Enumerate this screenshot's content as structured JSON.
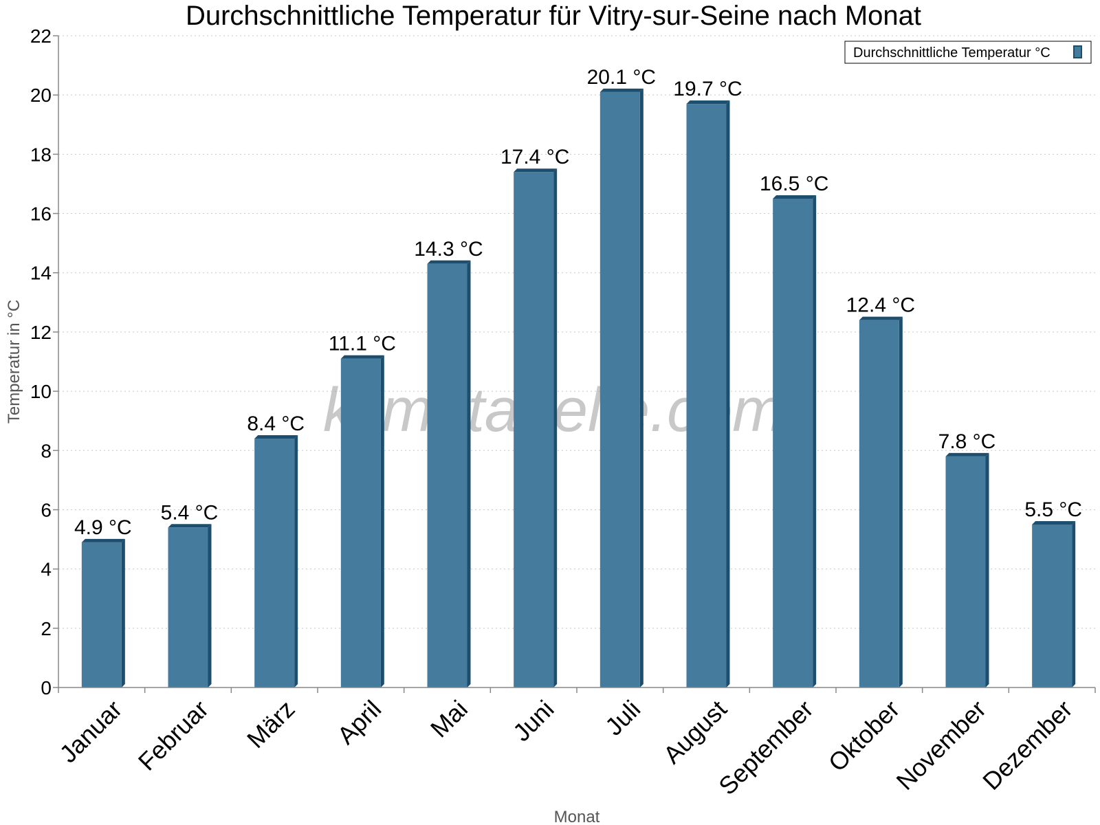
{
  "chart_data": {
    "type": "bar",
    "title": "Durchschnittliche Temperatur für Vitry-sur-Seine nach Monat",
    "xlabel": "Monat",
    "ylabel": "Temperatur in °C",
    "categories": [
      "Januar",
      "Februar",
      "März",
      "April",
      "Mai",
      "Juni",
      "Juli",
      "August",
      "September",
      "Oktober",
      "November",
      "Dezember"
    ],
    "series": [
      {
        "name": "Durchschnittliche Temperatur °C",
        "values": [
          4.9,
          5.4,
          8.4,
          11.1,
          14.3,
          17.4,
          20.1,
          19.7,
          16.5,
          12.4,
          7.8,
          5.5
        ],
        "labels": [
          "4.9 °C",
          "5.4 °C",
          "8.4 °C",
          "11.1 °C",
          "14.3 °C",
          "17.4 °C",
          "20.1 °C",
          "19.7 °C",
          "16.5 °C",
          "12.4 °C",
          "7.8 °C",
          "5.5 °C"
        ],
        "color": "#457b9d",
        "edge_color": "#1d4e6e"
      }
    ],
    "ylim": [
      0,
      22
    ],
    "yticks": [
      0,
      2,
      4,
      6,
      8,
      10,
      12,
      14,
      16,
      18,
      20,
      22
    ],
    "grid": true,
    "legend_position": "top-right"
  },
  "watermark": "klimatabelle.com"
}
